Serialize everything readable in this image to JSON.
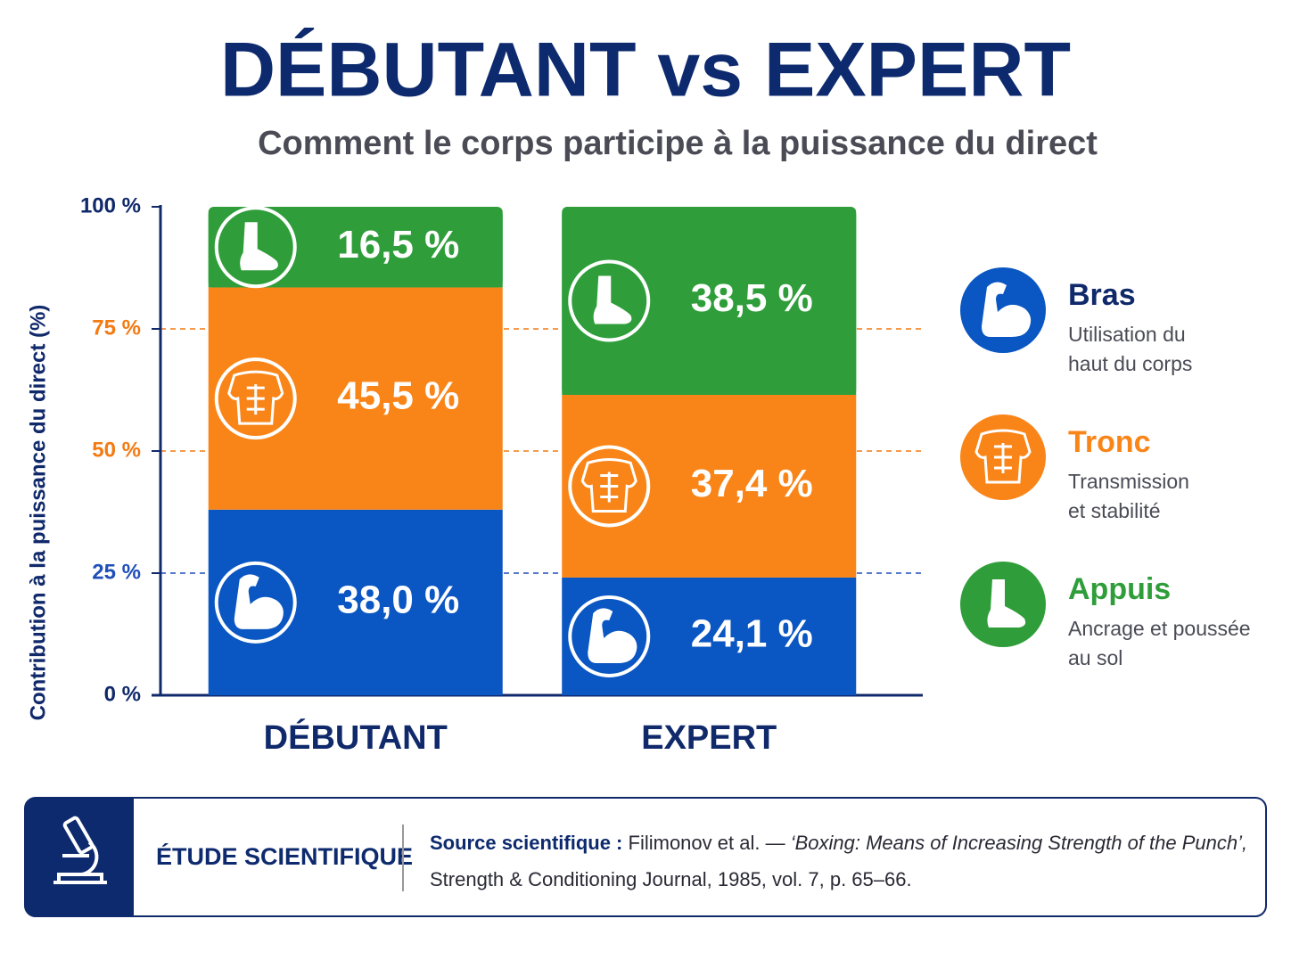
{
  "chart_data": {
    "type": "stacked_bar",
    "title": "DÉBUTANT vs EXPERT",
    "subtitle": "Comment le corps participe à la puissance du direct",
    "y_label": "Contribution à la puissance du direct (%)",
    "categories": [
      "DÉBUTANT",
      "EXPERT"
    ],
    "series": [
      {
        "name": "Bras",
        "description": [
          "Utilisation du",
          "haut du corps"
        ],
        "color": "#0a56c2",
        "values": [
          38.0,
          24.1
        ],
        "value_labels": [
          "38,0 %",
          "24,1 %"
        ]
      },
      {
        "name": "Tronc",
        "description": [
          "Transmission",
          "et stabilité"
        ],
        "color": "#f98518",
        "values": [
          45.5,
          37.4
        ],
        "value_labels": [
          "45,5 %",
          "37,4 %"
        ]
      },
      {
        "name": "Appuis",
        "description": [
          "Ancrage et poussée",
          "au sol"
        ],
        "color": "#2f9e3a",
        "values": [
          16.5,
          38.5
        ],
        "value_labels": [
          "16,5 %",
          "38,5 %"
        ]
      }
    ],
    "ylim": [
      0,
      100
    ],
    "yticks": [
      {
        "value": 0,
        "label": "0 %"
      },
      {
        "value": 25,
        "label": "25 %"
      },
      {
        "value": 50,
        "label": "50 %"
      },
      {
        "value": 75,
        "label": "75 %"
      },
      {
        "value": 100,
        "label": "100 %"
      }
    ],
    "ytick_colors": [
      "#10296b",
      "#1f4fb8",
      "#f47a12",
      "#f47a12",
      "#10296b"
    ],
    "grid": true
  },
  "footer": {
    "badge": "ÉTUDE SCIENTIFIQUE",
    "source_label": "Source scientifique :",
    "authors": "Filimonov et al. —",
    "work_title": "‘Boxing: Means of Increasing Strength of the Punch’,",
    "journal": "Strength & Conditioning Journal, 1985, vol. 7, p. 65–66."
  }
}
